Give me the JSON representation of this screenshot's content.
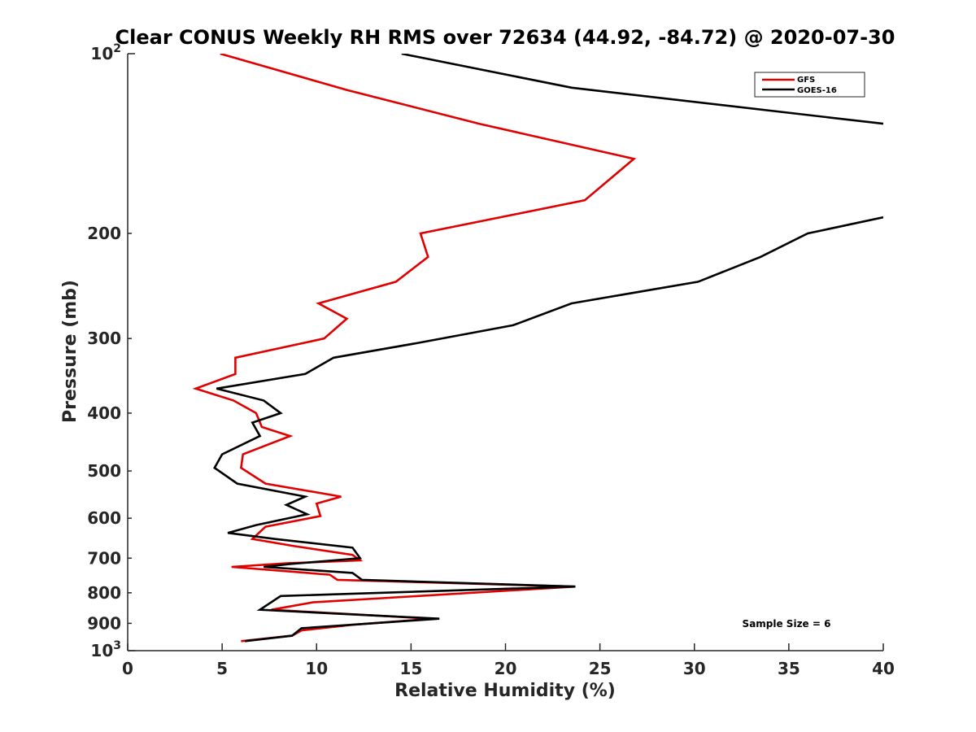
{
  "chart_data": {
    "type": "line",
    "title": "Clear CONUS Weekly RH RMS over 72634 (44.92, -84.72) @ 2020-07-30",
    "xlabel": "Relative Humidity (%)",
    "ylabel": "Pressure (mb)",
    "xlim": [
      0,
      40
    ],
    "ylim": [
      100,
      1000
    ],
    "yscale": "log",
    "yreverse": true,
    "grid": false,
    "xticks": [
      0,
      5,
      10,
      15,
      20,
      25,
      30,
      35,
      40
    ],
    "xtick_labels": [
      "0",
      "5",
      "10",
      "15",
      "20",
      "25",
      "30",
      "35",
      "40"
    ],
    "yticks": [
      200,
      300,
      400,
      500,
      600,
      700,
      800,
      900
    ],
    "ytick_labels": [
      "200",
      "300",
      "400",
      "500",
      "600",
      "700",
      "800",
      "900"
    ],
    "ytick_base": "10",
    "ytick_top_exp": "2",
    "ytick_bottom_exp": "3",
    "legend_position": "top-right",
    "annotation": "Sample Size = 6",
    "series": [
      {
        "name": "GFS",
        "color": "#e00000",
        "points": [
          [
            4.9,
            100
          ],
          [
            11.6,
            115
          ],
          [
            18.6,
            131
          ],
          [
            26.8,
            150
          ],
          [
            24.2,
            176
          ],
          [
            15.5,
            200
          ],
          [
            15.9,
            219
          ],
          [
            14.2,
            241
          ],
          [
            10.1,
            262
          ],
          [
            11.6,
            278
          ],
          [
            10.4,
            300
          ],
          [
            5.7,
            323
          ],
          [
            5.7,
            344
          ],
          [
            3.6,
            364
          ],
          [
            5.6,
            381
          ],
          [
            6.8,
            400
          ],
          [
            7.1,
            422
          ],
          [
            8.6,
            437
          ],
          [
            6.1,
            469
          ],
          [
            6.0,
            494
          ],
          [
            7.3,
            525
          ],
          [
            11.3,
            552
          ],
          [
            10.0,
            567
          ],
          [
            10.2,
            595
          ],
          [
            7.3,
            620
          ],
          [
            6.6,
            650
          ],
          [
            8.8,
            668
          ],
          [
            11.9,
            691
          ],
          [
            12.3,
            706
          ],
          [
            8.4,
            714
          ],
          [
            5.5,
            724
          ],
          [
            10.7,
            746
          ],
          [
            11.1,
            761
          ],
          [
            23.7,
            781
          ],
          [
            9.8,
            830
          ],
          [
            7.6,
            854
          ],
          [
            16.1,
            884
          ],
          [
            11.9,
            905
          ],
          [
            9.2,
            925
          ],
          [
            8.7,
            944
          ],
          [
            6.0,
            964
          ]
        ]
      },
      {
        "name": "GOES-16",
        "color": "#000000",
        "points": [
          [
            14.5,
            100
          ],
          [
            23.5,
            114
          ],
          [
            40.0,
            131
          ],
          [
            null,
            null
          ],
          [
            40.0,
            188
          ],
          [
            36.0,
            200
          ],
          [
            33.5,
            219
          ],
          [
            30.2,
            241
          ],
          [
            23.5,
            262
          ],
          [
            20.4,
            285
          ],
          [
            15.4,
            305
          ],
          [
            10.9,
            323
          ],
          [
            9.4,
            344
          ],
          [
            4.7,
            364
          ],
          [
            7.2,
            381
          ],
          [
            8.1,
            400
          ],
          [
            6.6,
            415
          ],
          [
            7.0,
            437
          ],
          [
            5.0,
            469
          ],
          [
            4.6,
            494
          ],
          [
            5.8,
            525
          ],
          [
            9.4,
            552
          ],
          [
            8.4,
            570
          ],
          [
            9.5,
            591
          ],
          [
            6.8,
            616
          ],
          [
            5.3,
            635
          ],
          [
            7.8,
            650
          ],
          [
            11.9,
            672
          ],
          [
            12.3,
            700
          ],
          [
            8.6,
            716
          ],
          [
            7.2,
            724
          ],
          [
            11.9,
            741
          ],
          [
            12.4,
            761
          ],
          [
            23.7,
            781
          ],
          [
            8.1,
            810
          ],
          [
            7.0,
            854
          ],
          [
            16.5,
            884
          ],
          [
            9.2,
            917
          ],
          [
            8.7,
            944
          ],
          [
            6.2,
            964
          ]
        ]
      }
    ]
  }
}
